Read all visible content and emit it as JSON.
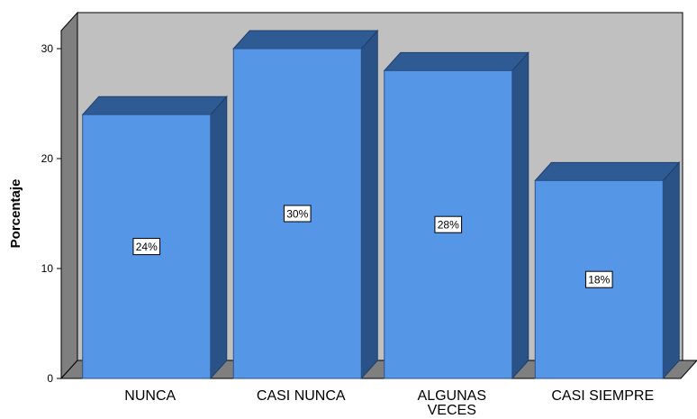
{
  "chart_data": {
    "type": "bar",
    "categories": [
      "NUNCA",
      "CASI NUNCA",
      "ALGUNAS VECES",
      "CASI SIEMPRE"
    ],
    "category_lines": [
      [
        "NUNCA"
      ],
      [
        "CASI NUNCA"
      ],
      [
        "ALGUNAS",
        "VECES"
      ],
      [
        "CASI SIEMPRE"
      ]
    ],
    "values": [
      24,
      30,
      28,
      18
    ],
    "data_labels": [
      "24%",
      "30%",
      "28%",
      "18%"
    ],
    "ylabel": "Porcentaje",
    "xlabel": "",
    "ylim": [
      0,
      30
    ],
    "yticks": [
      0,
      10,
      20,
      30
    ],
    "three_d": true,
    "grid": false,
    "colors": {
      "bar_front": "#5596e6",
      "bar_top": "#2e5b94",
      "bar_side": "#2b5287",
      "back_wall": "#c0c0c0",
      "side_wall": "#7f7f7f",
      "floor": "#7f7f7f"
    }
  }
}
